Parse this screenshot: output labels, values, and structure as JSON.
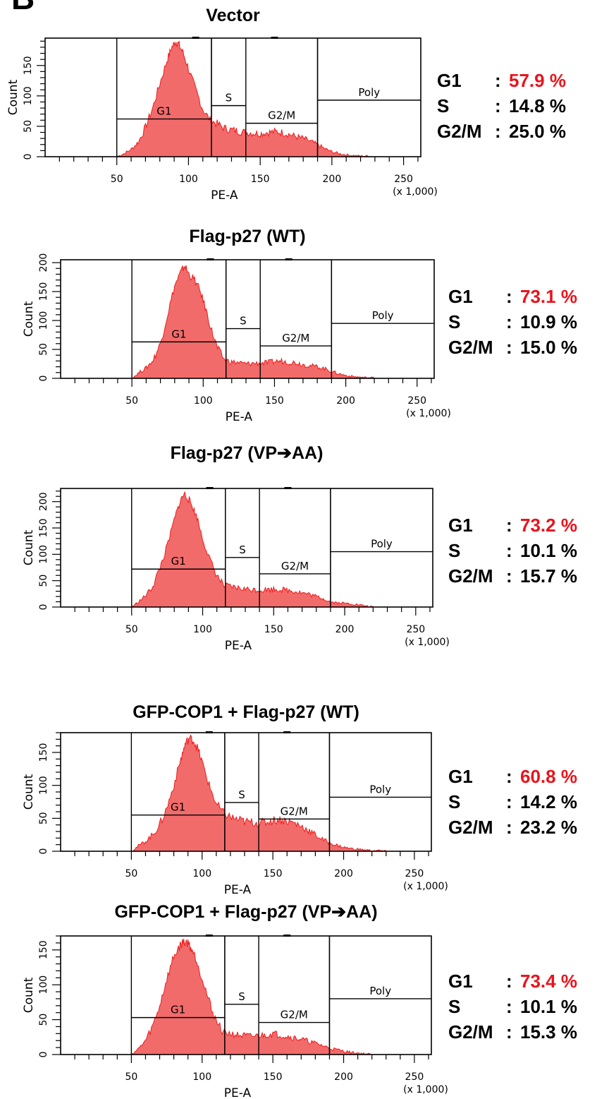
{
  "panel_letter": "B",
  "colors": {
    "fill": "#f26b6b",
    "edge": "#ee1c1c",
    "highlight": "#e8141c",
    "axis": "#000000"
  },
  "chart_data": [
    {
      "type": "area",
      "title": "Vector",
      "xlabel": "PE-A",
      "ylabel": "Count",
      "x_multiplier": "(x 1,000)",
      "xlim": [
        0,
        262
      ],
      "ylim": [
        0,
        195
      ],
      "xticks": [
        50,
        100,
        150,
        200,
        250
      ],
      "yticks": [
        0,
        50,
        100,
        150
      ],
      "gates": [
        {
          "name": "G1",
          "x": [
            50,
            116
          ],
          "level": 62
        },
        {
          "name": "S",
          "x": [
            116,
            140
          ],
          "level": 84
        },
        {
          "name": "G2/M",
          "x": [
            140,
            190
          ],
          "level": 55
        },
        {
          "name": "Poly",
          "x": [
            190,
            262
          ],
          "level": 93
        }
      ],
      "histogram_x": [
        50,
        55,
        60,
        65,
        70,
        75,
        80,
        85,
        88,
        91,
        93,
        96,
        100,
        105,
        110,
        115,
        120,
        125,
        130,
        135,
        140,
        145,
        150,
        155,
        160,
        165,
        170,
        175,
        180,
        185,
        190,
        195,
        200,
        205,
        210,
        215,
        220,
        225,
        230
      ],
      "histogram_y": [
        0,
        5,
        12,
        24,
        48,
        80,
        120,
        158,
        178,
        190,
        185,
        172,
        145,
        110,
        78,
        60,
        54,
        47,
        44,
        42,
        40,
        39,
        38,
        40,
        41,
        40,
        37,
        33,
        30,
        25,
        20,
        13,
        8,
        5,
        3,
        2,
        1,
        1,
        0
      ],
      "stats": [
        {
          "label": "G1",
          "value": "57.9 %"
        },
        {
          "label": "S",
          "value": "14.8 %"
        },
        {
          "label": "G2/M",
          "value": "25.0 %"
        }
      ]
    },
    {
      "type": "area",
      "title": "Flag-p27 (WT)",
      "xlabel": "PE-A",
      "ylabel": "Count",
      "x_multiplier": "(x 1,000)",
      "xlim": [
        0,
        262
      ],
      "ylim": [
        0,
        205
      ],
      "xticks": [
        50,
        100,
        150,
        200,
        250
      ],
      "yticks": [
        0,
        50,
        100,
        150,
        200
      ],
      "gates": [
        {
          "name": "G1",
          "x": [
            50,
            116
          ],
          "level": 63
        },
        {
          "name": "S",
          "x": [
            116,
            140
          ],
          "level": 86
        },
        {
          "name": "G2/M",
          "x": [
            140,
            190
          ],
          "level": 56
        },
        {
          "name": "Poly",
          "x": [
            190,
            262
          ],
          "level": 95
        }
      ],
      "histogram_x": [
        50,
        55,
        60,
        65,
        70,
        75,
        80,
        84,
        87,
        90,
        94,
        98,
        102,
        106,
        110,
        115,
        120,
        125,
        130,
        135,
        140,
        145,
        150,
        155,
        160,
        165,
        170,
        175,
        180,
        185,
        190,
        195,
        200,
        205,
        210,
        215,
        220,
        225
      ],
      "histogram_y": [
        0,
        10,
        18,
        32,
        60,
        110,
        160,
        182,
        195,
        180,
        170,
        150,
        118,
        82,
        52,
        32,
        28,
        27,
        25,
        26,
        26,
        27,
        29,
        30,
        28,
        27,
        24,
        22,
        20,
        17,
        12,
        8,
        5,
        3,
        2,
        1,
        1,
        0
      ],
      "stats": [
        {
          "label": "G1",
          "value": "73.1 %"
        },
        {
          "label": "S",
          "value": "10.9 %"
        },
        {
          "label": "G2/M",
          "value": "15.0 %"
        }
      ]
    },
    {
      "type": "area",
      "title": "Flag-p27 (VP➔AA)",
      "xlabel": "PE-A",
      "ylabel": "Count",
      "x_multiplier": "(x 1,000)",
      "xlim": [
        0,
        262
      ],
      "ylim": [
        0,
        225
      ],
      "xticks": [
        50,
        100,
        150,
        200,
        250
      ],
      "yticks": [
        0,
        50,
        100,
        150,
        200
      ],
      "gates": [
        {
          "name": "G1",
          "x": [
            50,
            116
          ],
          "level": 72
        },
        {
          "name": "S",
          "x": [
            116,
            140
          ],
          "level": 94
        },
        {
          "name": "G2/M",
          "x": [
            140,
            190
          ],
          "level": 63
        },
        {
          "name": "Poly",
          "x": [
            190,
            262
          ],
          "level": 105
        }
      ],
      "histogram_x": [
        50,
        55,
        60,
        65,
        70,
        75,
        80,
        84,
        87,
        90,
        93,
        96,
        100,
        105,
        110,
        115,
        120,
        125,
        130,
        135,
        140,
        145,
        150,
        155,
        160,
        165,
        170,
        175,
        180,
        185,
        190,
        195,
        200,
        205,
        210,
        215,
        220
      ],
      "histogram_y": [
        0,
        10,
        22,
        40,
        75,
        115,
        165,
        200,
        215,
        205,
        190,
        170,
        130,
        90,
        60,
        40,
        38,
        36,
        34,
        33,
        32,
        33,
        34,
        33,
        32,
        30,
        27,
        24,
        20,
        16,
        10,
        8,
        7,
        6,
        4,
        2,
        0
      ],
      "stats": [
        {
          "label": "G1",
          "value": "73.2 %"
        },
        {
          "label": "S",
          "value": "10.1 %"
        },
        {
          "label": "G2/M",
          "value": "15.7 %"
        }
      ]
    },
    {
      "type": "area",
      "title": "GFP-COP1 + Flag-p27 (WT)",
      "xlabel": "PE-A",
      "ylabel": "Count",
      "x_multiplier": "(x 1,000)",
      "xlim": [
        0,
        262
      ],
      "ylim": [
        0,
        180
      ],
      "xticks": [
        50,
        100,
        150,
        200,
        250
      ],
      "yticks": [
        0,
        50,
        100,
        150
      ],
      "gates": [
        {
          "name": "G1",
          "x": [
            50,
            116
          ],
          "level": 55
        },
        {
          "name": "S",
          "x": [
            116,
            140
          ],
          "level": 74
        },
        {
          "name": "G2/M",
          "x": [
            140,
            190
          ],
          "level": 49
        },
        {
          "name": "Poly",
          "x": [
            190,
            262
          ],
          "level": 82
        }
      ],
      "histogram_x": [
        50,
        55,
        60,
        65,
        70,
        75,
        80,
        85,
        88,
        91,
        94,
        97,
        100,
        105,
        110,
        115,
        120,
        125,
        130,
        135,
        140,
        145,
        150,
        155,
        160,
        165,
        170,
        175,
        180,
        185,
        190,
        195,
        200,
        205,
        210,
        215,
        220,
        225,
        230
      ],
      "histogram_y": [
        0,
        8,
        15,
        25,
        40,
        65,
        100,
        140,
        162,
        172,
        168,
        155,
        135,
        100,
        72,
        58,
        52,
        48,
        45,
        44,
        43,
        44,
        47,
        48,
        46,
        43,
        38,
        32,
        25,
        18,
        13,
        9,
        6,
        4,
        3,
        2,
        1,
        1,
        0
      ],
      "stats": [
        {
          "label": "G1",
          "value": "60.8 %"
        },
        {
          "label": "S",
          "value": "14.2 %"
        },
        {
          "label": "G2/M",
          "value": "23.2 %"
        }
      ]
    },
    {
      "type": "area",
      "title": "GFP-COP1 + Flag-p27 (VP➔AA)",
      "xlabel": "PE-A",
      "ylabel": "Count",
      "x_multiplier": "(x 1,000)",
      "xlim": [
        0,
        262
      ],
      "ylim": [
        0,
        170
      ],
      "xticks": [
        50,
        100,
        150,
        200,
        250
      ],
      "yticks": [
        0,
        50,
        100,
        150
      ],
      "gates": [
        {
          "name": "G1",
          "x": [
            50,
            116
          ],
          "level": 53
        },
        {
          "name": "S",
          "x": [
            116,
            140
          ],
          "level": 72
        },
        {
          "name": "G2/M",
          "x": [
            140,
            190
          ],
          "level": 46
        },
        {
          "name": "Poly",
          "x": [
            190,
            262
          ],
          "level": 80
        }
      ],
      "histogram_x": [
        50,
        55,
        60,
        65,
        70,
        75,
        80,
        84,
        87,
        90,
        93,
        96,
        100,
        105,
        110,
        115,
        120,
        125,
        130,
        135,
        140,
        145,
        150,
        155,
        160,
        165,
        170,
        175,
        180,
        185,
        190,
        195,
        200,
        205,
        210,
        215,
        220
      ],
      "histogram_y": [
        0,
        8,
        20,
        40,
        70,
        108,
        140,
        155,
        162,
        160,
        150,
        136,
        110,
        75,
        48,
        32,
        30,
        28,
        27,
        26,
        27,
        28,
        30,
        28,
        26,
        24,
        22,
        19,
        16,
        13,
        9,
        7,
        5,
        3,
        2,
        1,
        0
      ],
      "stats": [
        {
          "label": "G1",
          "value": "73.4 %"
        },
        {
          "label": "S",
          "value": "10.1 %"
        },
        {
          "label": "G2/M",
          "value": "15.3 %"
        }
      ]
    }
  ]
}
